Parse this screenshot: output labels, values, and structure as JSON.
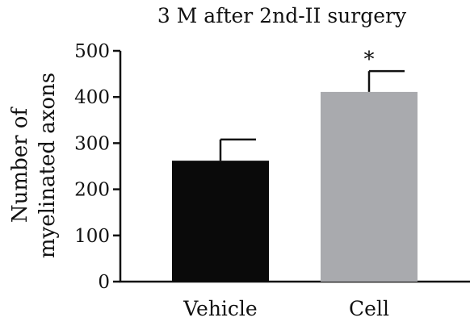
{
  "chart_data": {
    "type": "bar",
    "title": "3 M after 2nd-II surgery",
    "xlabel": "",
    "ylabel_lines": [
      "Number of",
      "myelinated axons"
    ],
    "categories": [
      "Vehicle",
      "Cell"
    ],
    "values": [
      262,
      411
    ],
    "errors": [
      46,
      45
    ],
    "colors": [
      "#0a0a0a",
      "#a9aaae"
    ],
    "annotations": [
      "",
      "*"
    ],
    "ylim": [
      0,
      500
    ],
    "yticks": [
      0,
      100,
      200,
      300,
      400,
      500
    ],
    "grid": false,
    "legend": "none"
  }
}
